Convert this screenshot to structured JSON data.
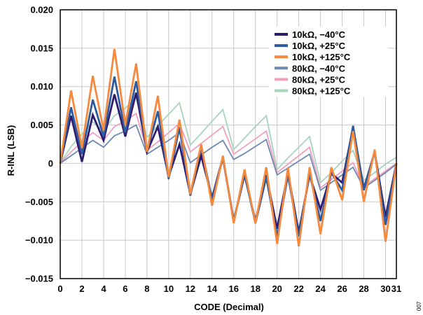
{
  "figure_id": "007",
  "chart_data": {
    "type": "line",
    "xlabel": "CODE (Decimal)",
    "ylabel": "R-INL (LSB)",
    "xlim": [
      0,
      31
    ],
    "ylim": [
      -0.015,
      0.02
    ],
    "xticks": [
      0,
      2,
      4,
      6,
      8,
      10,
      12,
      14,
      16,
      18,
      20,
      22,
      24,
      26,
      28,
      30
    ],
    "xtick_labels": [
      "0",
      "2",
      "4",
      "6",
      "8",
      "10",
      "12",
      "14",
      "16",
      "18",
      "20",
      "22",
      "24",
      "26",
      "28",
      "30"
    ],
    "extra_xtick_label": "31",
    "yticks": [
      0.02,
      0.015,
      0.01,
      0.005,
      0,
      -0.005,
      -0.01,
      -0.015
    ],
    "ytick_labels": [
      "0.020",
      "0.015",
      "0.010",
      "0.005",
      "0",
      "−0.005",
      "−0.010",
      "−0.015"
    ],
    "grid": true,
    "legend_position": "top-right",
    "x": [
      0,
      1,
      2,
      3,
      4,
      5,
      6,
      7,
      8,
      9,
      10,
      11,
      12,
      13,
      14,
      15,
      16,
      17,
      18,
      19,
      20,
      21,
      22,
      23,
      24,
      25,
      26,
      27,
      28,
      29,
      30,
      31
    ],
    "series": [
      {
        "name": "10kΩ, −40°C",
        "color": "#2e1a6e",
        "values": [
          0,
          0.0062,
          0.0002,
          0.0063,
          0.003,
          0.009,
          0.0035,
          0.0092,
          0.0015,
          0.0048,
          -0.0017,
          0.0025,
          -0.004,
          0.001,
          -0.0045,
          0.0008,
          -0.0075,
          -0.0015,
          -0.0075,
          -0.0015,
          -0.0085,
          -0.0012,
          -0.009,
          -0.0015,
          -0.006,
          -0.0013,
          -0.0025,
          0.0047,
          -0.0033,
          0.0015,
          -0.007,
          0
        ]
      },
      {
        "name": "10kΩ, +25°C",
        "color": "#2e5a9e",
        "values": [
          0,
          0.0073,
          0.0012,
          0.0083,
          0.0035,
          0.0113,
          0.004,
          0.0107,
          0.0015,
          0.0068,
          -0.002,
          0.0047,
          -0.0042,
          0.0022,
          -0.0048,
          0.0007,
          -0.0075,
          -0.0013,
          -0.0078,
          -0.0018,
          -0.0095,
          -0.0015,
          -0.0095,
          -0.0013,
          -0.0075,
          -0.0012,
          -0.0035,
          0.0049,
          -0.0035,
          0.0015,
          -0.008,
          0
        ]
      },
      {
        "name": "10kΩ, +125°C",
        "color": "#f58a3e",
        "values": [
          0,
          0.0095,
          0.002,
          0.0114,
          0.0043,
          0.0149,
          0.005,
          0.013,
          0.0015,
          0.0088,
          -0.0018,
          0.0057,
          -0.004,
          0.0025,
          -0.0055,
          0.001,
          -0.0078,
          -0.0008,
          -0.0078,
          -0.0005,
          -0.0105,
          -0.0005,
          -0.0108,
          -0.0005,
          -0.0092,
          -0.0005,
          -0.0048,
          0.0042,
          -0.005,
          0.0018,
          -0.0102,
          0
        ]
      },
      {
        "name": "80kΩ, −40°C",
        "color": "#6e88b4",
        "values": [
          0,
          0.001,
          0.002,
          0.003,
          0.0021,
          0.0036,
          0.0042,
          0.005,
          0.0012,
          0.0021,
          0.003,
          0.004,
          0.0001,
          0.0011,
          0.0021,
          0.003,
          0.0005,
          0.0013,
          0.0022,
          0.0031,
          -0.0015,
          -0.0006,
          0.0003,
          0.0012,
          -0.0035,
          -0.0025,
          -0.0015,
          -0.0005,
          -0.0032,
          -0.0022,
          -0.0012,
          -0.0001
        ]
      },
      {
        "name": "80kΩ, +25°C",
        "color": "#f0a0be",
        "values": [
          0,
          0.0015,
          0.0028,
          0.004,
          0.003,
          0.0048,
          0.0055,
          0.0065,
          0.0017,
          0.0028,
          0.004,
          0.0052,
          0.0015,
          0.0026,
          0.0037,
          0.0048,
          0.0012,
          0.0022,
          0.0032,
          0.0042,
          -0.0012,
          -0.0001,
          0.001,
          0.0021,
          -0.0032,
          -0.0021,
          -0.001,
          0.0001,
          -0.003,
          -0.002,
          -0.001,
          0
        ]
      },
      {
        "name": "80kΩ, +125°C",
        "color": "#a6d4bc",
        "values": [
          0,
          0.0022,
          0.0038,
          0.0054,
          0.0042,
          0.0062,
          0.0072,
          0.0085,
          0.0034,
          0.0049,
          0.0064,
          0.0079,
          0.0024,
          0.0039,
          0.0055,
          0.007,
          0.0018,
          0.0033,
          0.0048,
          0.0062,
          -0.0008,
          0.0007,
          0.0021,
          0.0035,
          -0.0025,
          -0.0012,
          0.0003,
          0.0017,
          -0.0022,
          -0.0012,
          -0.0001,
          0.0008
        ]
      }
    ]
  }
}
